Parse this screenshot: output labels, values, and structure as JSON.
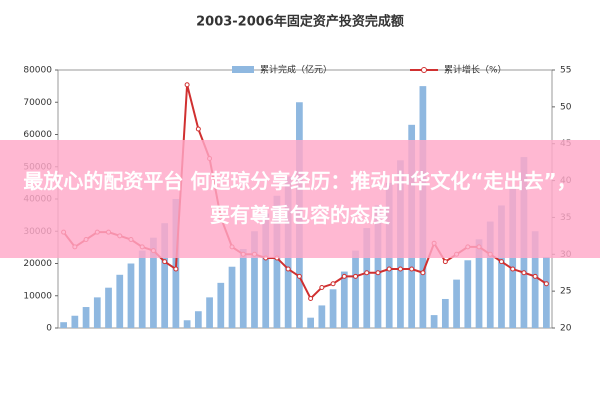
{
  "chart_data": {
    "type": "bar_line",
    "title": "2003-2006年固定资产投资完成额",
    "categories": [
      null,
      null,
      null,
      null,
      null,
      null,
      null,
      null,
      null,
      null,
      null,
      null,
      null,
      null,
      null,
      null,
      null,
      null,
      null,
      null,
      null,
      null,
      null,
      null,
      null,
      null,
      null,
      null,
      null,
      null,
      null,
      null,
      null,
      null,
      null,
      null,
      null,
      null,
      null,
      null,
      null,
      null,
      null,
      null
    ],
    "series": [
      {
        "name": "累计完成（亿元）",
        "color": "#8fb8e0",
        "type": "bar",
        "values": [
          1800,
          3800,
          6500,
          9500,
          12500,
          16500,
          20000,
          24000,
          28000,
          32500,
          40000,
          2400,
          5200,
          9500,
          14000,
          19000,
          24500,
          30000,
          35500,
          41000,
          47000,
          70000,
          3200,
          7000,
          12000,
          17500,
          24000,
          31000,
          38000,
          45000,
          52000,
          63000,
          75000,
          4000,
          9000,
          15000,
          21000,
          27500,
          33000,
          38000,
          44000,
          53000,
          30000,
          22000
        ]
      },
      {
        "name": "累计增长（%）",
        "color": "#d03030",
        "type": "line",
        "axis": "y2",
        "values": [
          33,
          31,
          32,
          33,
          33,
          32.5,
          32,
          31,
          30.5,
          29,
          28,
          53,
          47,
          43,
          35,
          31,
          30,
          30,
          29.5,
          29.5,
          28,
          27,
          24,
          25.5,
          26,
          27,
          27,
          27.5,
          27.5,
          28,
          28,
          28,
          27.5,
          31.5,
          29,
          30,
          31,
          31,
          30,
          29,
          28,
          27.5,
          27,
          26
        ]
      }
    ],
    "ylim": [
      0,
      80000
    ],
    "yticks": [
      0,
      10000,
      20000,
      30000,
      40000,
      50000,
      60000,
      70000,
      80000
    ],
    "y2lim": [
      20,
      55
    ],
    "y2ticks": [
      20,
      25,
      30,
      35,
      40,
      45,
      50,
      55
    ]
  },
  "banner": {
    "text": "最放心的配资平台 何超琼分享经历：推动中华文化“走出去”，要有尊重包容的态度"
  }
}
